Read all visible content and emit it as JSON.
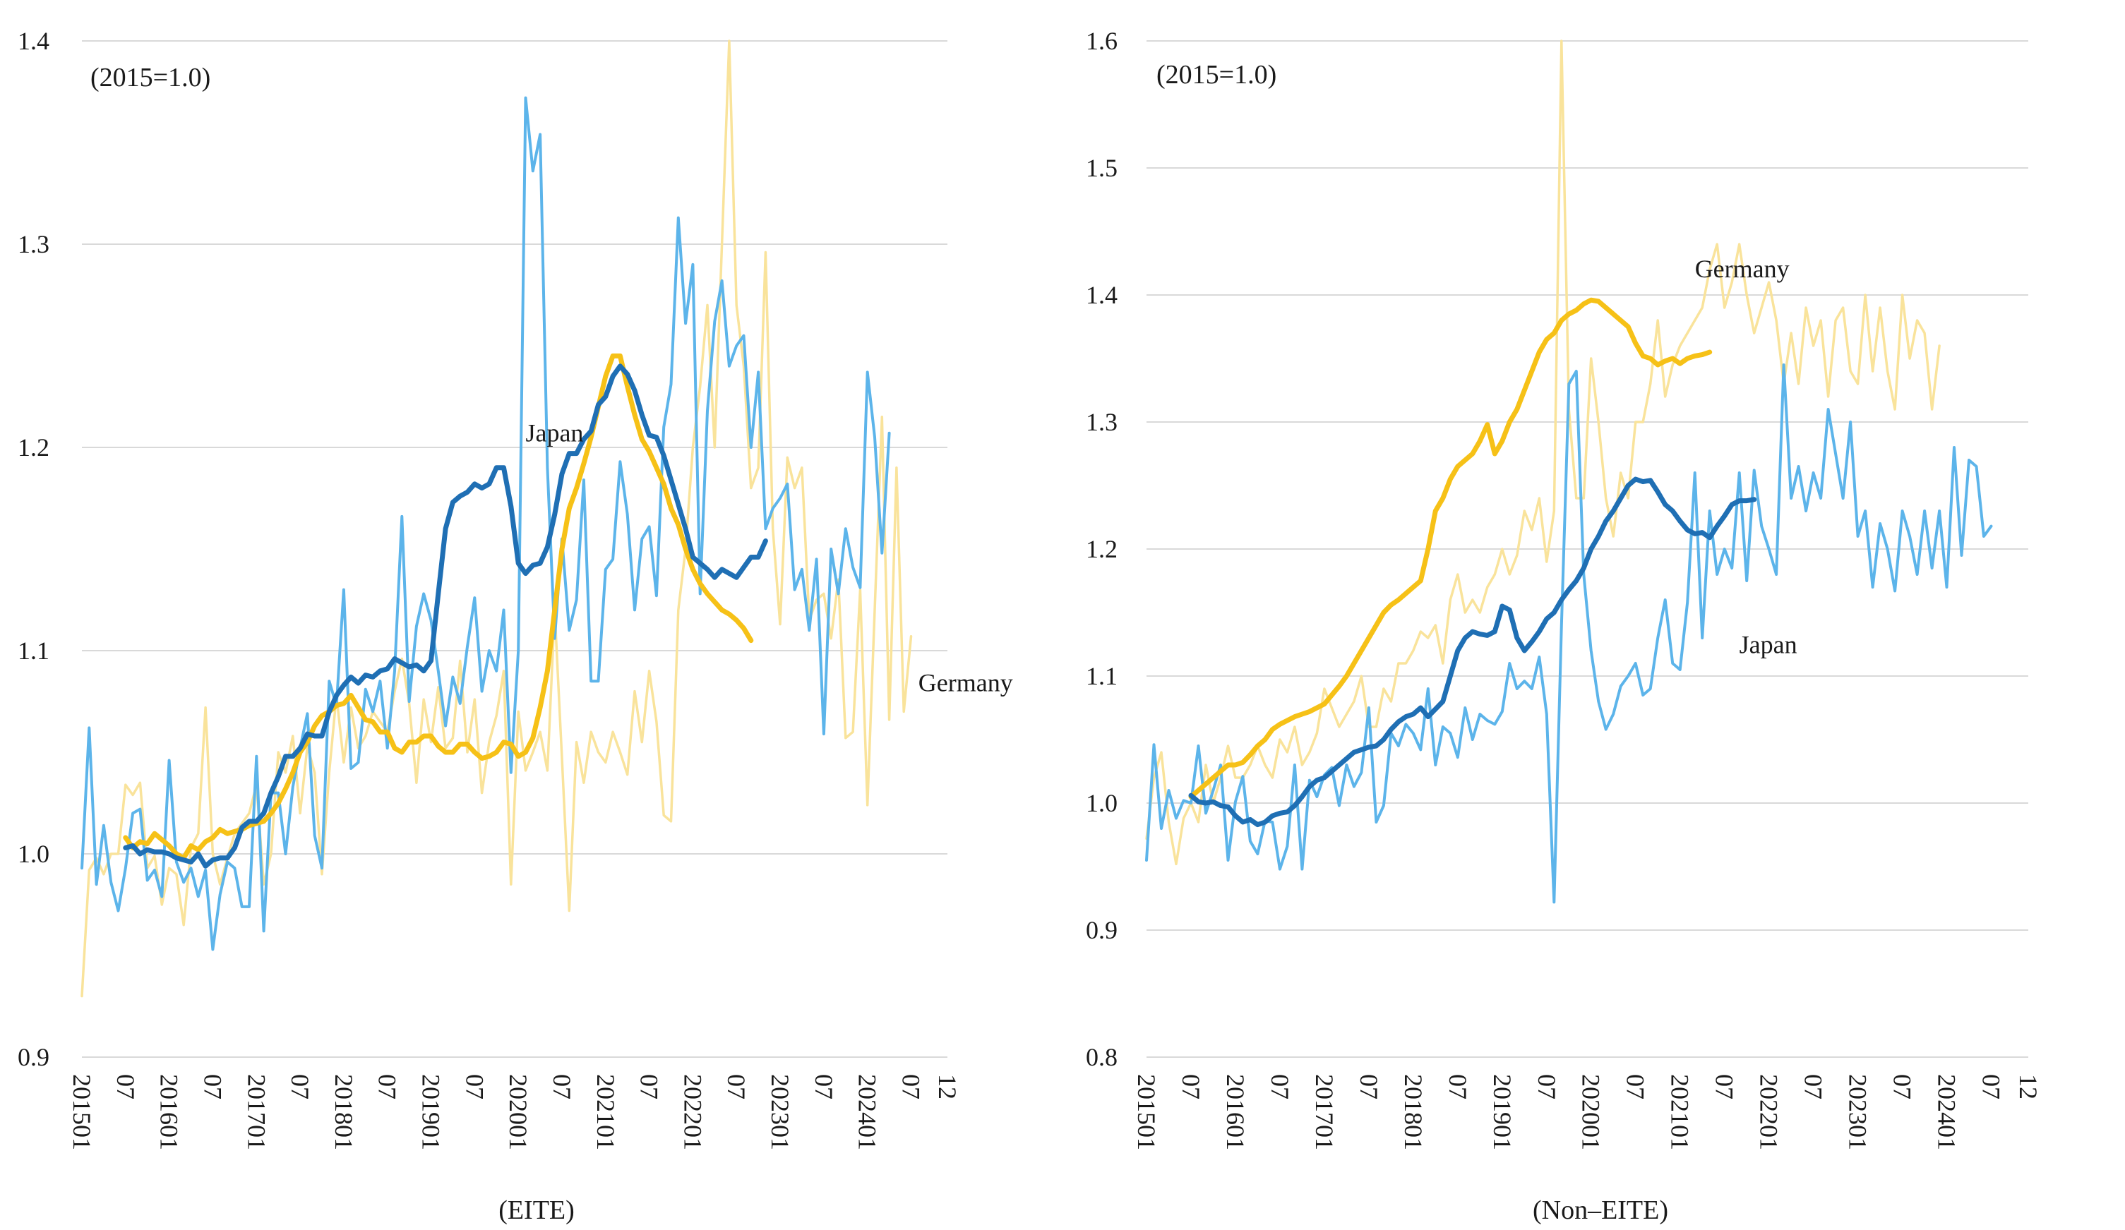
{
  "colors": {
    "japan_raw": "#5cb4ea",
    "japan_ma": "#1f6fb4",
    "germany_raw": "#f9e39b",
    "germany_ma": "#f6c117",
    "grid": "#d9d9d9"
  },
  "chart_data": [
    {
      "type": "line",
      "panel": "left",
      "annotation": "(2015=1.0)",
      "xlabel": "(EITE)",
      "ylim": [
        0.9,
        1.4
      ],
      "y_ticks": [
        "0.9",
        "1.0",
        "1.1",
        "1.2",
        "1.3",
        "1.4"
      ],
      "x_tick_labels": [
        "201501",
        "07",
        "201601",
        "07",
        "201701",
        "07",
        "201801",
        "07",
        "201901",
        "07",
        "202001",
        "07",
        "202101",
        "07",
        "202201",
        "07",
        "202301",
        "07",
        "202401",
        "07",
        "12"
      ],
      "grid": true,
      "legend": "inline labels",
      "series_labels": [
        {
          "text": "Japan",
          "month": 61,
          "value": 1.203
        },
        {
          "text": "Germany",
          "month": 115,
          "value": 1.08
        }
      ],
      "series": [
        {
          "name": "Japan",
          "style": "raw",
          "start_month": 0,
          "values": [
            0.993,
            1.062,
            0.985,
            1.014,
            0.986,
            0.972,
            0.993,
            1.02,
            1.022,
            0.987,
            0.992,
            0.979,
            1.046,
            0.996,
            0.986,
            0.993,
            0.979,
            0.992,
            0.953,
            0.98,
            0.996,
            0.993,
            0.974,
            0.974,
            1.048,
            0.962,
            1.03,
            1.03,
            1.0,
            1.033,
            1.052,
            1.069,
            1.009,
            0.993,
            1.085,
            1.073,
            1.13,
            1.042,
            1.045,
            1.081,
            1.07,
            1.085,
            1.052,
            1.09,
            1.166,
            1.075,
            1.112,
            1.128,
            1.115,
            1.09,
            1.063,
            1.087,
            1.074,
            1.102,
            1.126,
            1.08,
            1.1,
            1.09,
            1.12,
            1.04,
            1.1,
            1.372,
            1.336,
            1.354,
            1.19,
            1.106,
            1.155,
            1.11,
            1.125,
            1.184,
            1.085,
            1.085,
            1.14,
            1.145,
            1.193,
            1.167,
            1.12,
            1.155,
            1.161,
            1.127,
            1.21,
            1.231,
            1.313,
            1.261,
            1.29,
            1.128,
            1.218,
            1.262,
            1.282,
            1.24,
            1.25,
            1.255,
            1.2,
            1.237,
            1.16,
            1.17,
            1.175,
            1.182,
            1.13,
            1.14,
            1.11,
            1.145,
            1.059,
            1.15,
            1.128,
            1.16,
            1.141,
            1.131,
            1.237,
            1.205,
            1.148,
            1.207
          ]
        },
        {
          "name": "Japan",
          "style": "moving-average",
          "start_month": 6,
          "values": [
            1.003,
            1.004,
            1.0,
            1.002,
            1.001,
            1.001,
            1.0,
            0.998,
            0.997,
            0.996,
            1.0,
            0.994,
            0.997,
            0.998,
            0.998,
            1.003,
            1.013,
            1.016,
            1.016,
            1.02,
            1.03,
            1.038,
            1.048,
            1.048,
            1.052,
            1.059,
            1.058,
            1.058,
            1.07,
            1.078,
            1.083,
            1.087,
            1.084,
            1.088,
            1.087,
            1.09,
            1.091,
            1.096,
            1.094,
            1.092,
            1.093,
            1.09,
            1.095,
            1.128,
            1.16,
            1.173,
            1.176,
            1.178,
            1.182,
            1.18,
            1.182,
            1.19,
            1.19,
            1.171,
            1.143,
            1.138,
            1.142,
            1.143,
            1.151,
            1.167,
            1.187,
            1.197,
            1.197,
            1.204,
            1.208,
            1.221,
            1.225,
            1.235,
            1.24,
            1.236,
            1.228,
            1.216,
            1.206,
            1.205,
            1.196,
            1.184,
            1.172,
            1.16,
            1.146,
            1.143,
            1.14,
            1.136,
            1.14,
            1.138,
            1.136,
            1.141,
            1.146,
            1.146,
            1.154
          ]
        },
        {
          "name": "Germany",
          "style": "raw",
          "start_month": 0,
          "values": [
            0.93,
            0.992,
            0.998,
            0.99,
            1.0,
            1.0,
            1.034,
            1.029,
            1.035,
            0.993,
            0.999,
            0.975,
            0.993,
            0.99,
            0.965,
            1.003,
            1.01,
            1.072,
            1.0,
            0.985,
            0.998,
            1.01,
            1.015,
            1.02,
            1.034,
            0.985,
            1.0,
            1.05,
            1.04,
            1.058,
            1.02,
            1.053,
            1.04,
            0.99,
            1.04,
            1.078,
            1.045,
            1.072,
            1.052,
            1.058,
            1.07,
            1.065,
            1.06,
            1.08,
            1.096,
            1.074,
            1.035,
            1.076,
            1.055,
            1.082,
            1.052,
            1.057,
            1.095,
            1.05,
            1.076,
            1.03,
            1.055,
            1.068,
            1.09,
            0.985,
            1.07,
            1.041,
            1.05,
            1.06,
            1.041,
            1.12,
            1.047,
            0.972,
            1.055,
            1.035,
            1.06,
            1.05,
            1.045,
            1.06,
            1.05,
            1.039,
            1.08,
            1.055,
            1.09,
            1.065,
            1.019,
            1.016,
            1.12,
            1.15,
            1.2,
            1.23,
            1.27,
            1.2,
            1.3,
            1.42,
            1.27,
            1.24,
            1.18,
            1.19,
            1.296,
            1.16,
            1.113,
            1.195,
            1.18,
            1.19,
            1.115,
            1.125,
            1.128,
            1.106,
            1.135,
            1.057,
            1.06,
            1.13,
            1.024,
            1.12,
            1.215,
            1.066,
            1.19,
            1.07,
            1.107
          ]
        },
        {
          "name": "Germany",
          "style": "moving-average",
          "start_month": 6,
          "values": [
            1.008,
            1.003,
            1.006,
            1.005,
            1.01,
            1.007,
            1.004,
            1.0,
            0.998,
            1.004,
            1.002,
            1.006,
            1.008,
            1.012,
            1.01,
            1.011,
            1.012,
            1.014,
            1.015,
            1.016,
            1.02,
            1.025,
            1.032,
            1.04,
            1.05,
            1.055,
            1.063,
            1.068,
            1.07,
            1.073,
            1.074,
            1.078,
            1.072,
            1.066,
            1.065,
            1.06,
            1.06,
            1.052,
            1.05,
            1.055,
            1.055,
            1.058,
            1.058,
            1.053,
            1.05,
            1.05,
            1.054,
            1.054,
            1.05,
            1.047,
            1.048,
            1.05,
            1.055,
            1.054,
            1.048,
            1.05,
            1.057,
            1.072,
            1.09,
            1.12,
            1.15,
            1.17,
            1.18,
            1.192,
            1.205,
            1.22,
            1.235,
            1.245,
            1.245,
            1.23,
            1.216,
            1.204,
            1.198,
            1.19,
            1.182,
            1.17,
            1.162,
            1.15,
            1.14,
            1.133,
            1.128,
            1.124,
            1.12,
            1.118,
            1.115,
            1.111,
            1.105
          ]
        }
      ]
    },
    {
      "type": "line",
      "panel": "right",
      "annotation": "(2015=1.0)",
      "xlabel": "(Non–EITE)",
      "ylim": [
        0.8,
        1.6
      ],
      "y_ticks": [
        "0.8",
        "0.9",
        "1.0",
        "1.1",
        "1.2",
        "1.3",
        "1.4",
        "1.5",
        "1.6"
      ],
      "x_tick_labels": [
        "201501",
        "07",
        "201601",
        "07",
        "201701",
        "07",
        "201801",
        "07",
        "201901",
        "07",
        "202001",
        "07",
        "202101",
        "07",
        "202201",
        "07",
        "202301",
        "07",
        "202401",
        "07",
        "12"
      ],
      "grid": true,
      "legend": "inline labels",
      "series_labels": [
        {
          "text": "Germany",
          "month": 74,
          "value": 1.414
        },
        {
          "text": "Japan",
          "month": 80,
          "value": 1.118
        }
      ],
      "series": [
        {
          "name": "Japan",
          "style": "raw",
          "start_month": 0,
          "values": [
            0.955,
            1.046,
            0.98,
            1.01,
            0.988,
            1.002,
            1.0,
            1.045,
            0.992,
            1.01,
            1.03,
            0.955,
            1.001,
            1.021,
            0.97,
            0.96,
            0.986,
            0.985,
            0.948,
            0.966,
            1.03,
            0.948,
            1.018,
            1.005,
            1.022,
            1.028,
            0.998,
            1.03,
            1.013,
            1.024,
            1.075,
            0.985,
            0.998,
            1.055,
            1.045,
            1.062,
            1.055,
            1.042,
            1.09,
            1.03,
            1.06,
            1.055,
            1.036,
            1.075,
            1.05,
            1.07,
            1.065,
            1.062,
            1.072,
            1.11,
            1.09,
            1.096,
            1.09,
            1.115,
            1.07,
            0.922,
            1.14,
            1.33,
            1.34,
            1.18,
            1.12,
            1.08,
            1.058,
            1.07,
            1.092,
            1.1,
            1.11,
            1.085,
            1.09,
            1.13,
            1.16,
            1.11,
            1.105,
            1.158,
            1.26,
            1.13,
            1.23,
            1.18,
            1.2,
            1.185,
            1.26,
            1.175,
            1.262,
            1.218,
            1.2,
            1.18,
            1.345,
            1.24,
            1.265,
            1.23,
            1.26,
            1.24,
            1.31,
            1.275,
            1.24,
            1.3,
            1.21,
            1.23,
            1.17,
            1.22,
            1.2,
            1.167,
            1.23,
            1.21,
            1.18,
            1.23,
            1.185,
            1.23,
            1.17,
            1.28,
            1.195,
            1.27,
            1.265,
            1.21,
            1.218
          ]
        },
        {
          "name": "Japan",
          "style": "moving-average",
          "start_month": 6,
          "values": [
            1.006,
            1.001,
            1.0,
            1.001,
            0.998,
            0.997,
            0.99,
            0.985,
            0.987,
            0.983,
            0.985,
            0.99,
            0.992,
            0.993,
            0.998,
            1.005,
            1.013,
            1.018,
            1.02,
            1.025,
            1.03,
            1.035,
            1.04,
            1.042,
            1.044,
            1.045,
            1.05,
            1.058,
            1.064,
            1.068,
            1.07,
            1.075,
            1.068,
            1.074,
            1.08,
            1.1,
            1.12,
            1.13,
            1.135,
            1.133,
            1.132,
            1.135,
            1.155,
            1.152,
            1.13,
            1.12,
            1.127,
            1.135,
            1.145,
            1.15,
            1.16,
            1.168,
            1.175,
            1.185,
            1.2,
            1.21,
            1.222,
            1.23,
            1.24,
            1.25,
            1.255,
            1.253,
            1.254,
            1.245,
            1.235,
            1.23,
            1.222,
            1.215,
            1.212,
            1.213,
            1.209,
            1.218,
            1.226,
            1.235,
            1.238,
            1.238,
            1.239
          ]
        },
        {
          "name": "Germany",
          "style": "raw",
          "start_month": 0,
          "values": [
            0.972,
            1.02,
            1.04,
            0.985,
            0.952,
            0.988,
            1.0,
            0.985,
            1.03,
            1.0,
            1.02,
            1.045,
            1.02,
            1.02,
            1.03,
            1.045,
            1.03,
            1.02,
            1.05,
            1.04,
            1.06,
            1.03,
            1.04,
            1.055,
            1.09,
            1.075,
            1.06,
            1.07,
            1.08,
            1.1,
            1.06,
            1.06,
            1.09,
            1.08,
            1.11,
            1.11,
            1.12,
            1.135,
            1.13,
            1.14,
            1.11,
            1.16,
            1.18,
            1.15,
            1.16,
            1.15,
            1.17,
            1.18,
            1.2,
            1.18,
            1.195,
            1.23,
            1.215,
            1.24,
            1.19,
            1.23,
            1.65,
            1.31,
            1.24,
            1.24,
            1.35,
            1.3,
            1.24,
            1.21,
            1.26,
            1.24,
            1.3,
            1.3,
            1.33,
            1.38,
            1.32,
            1.345,
            1.36,
            1.37,
            1.38,
            1.39,
            1.42,
            1.44,
            1.39,
            1.41,
            1.44,
            1.4,
            1.37,
            1.39,
            1.41,
            1.38,
            1.33,
            1.37,
            1.33,
            1.39,
            1.36,
            1.38,
            1.32,
            1.38,
            1.39,
            1.34,
            1.33,
            1.4,
            1.34,
            1.39,
            1.34,
            1.31,
            1.4,
            1.35,
            1.38,
            1.37,
            1.31,
            1.36
          ]
        },
        {
          "name": "Germany",
          "style": "moving-average",
          "start_month": 6,
          "values": [
            1.005,
            1.01,
            1.015,
            1.02,
            1.025,
            1.03,
            1.03,
            1.032,
            1.038,
            1.045,
            1.05,
            1.058,
            1.062,
            1.065,
            1.068,
            1.07,
            1.072,
            1.075,
            1.078,
            1.085,
            1.092,
            1.1,
            1.11,
            1.12,
            1.13,
            1.14,
            1.15,
            1.156,
            1.16,
            1.165,
            1.17,
            1.175,
            1.2,
            1.23,
            1.24,
            1.255,
            1.265,
            1.27,
            1.275,
            1.285,
            1.298,
            1.275,
            1.285,
            1.3,
            1.31,
            1.325,
            1.34,
            1.355,
            1.365,
            1.37,
            1.38,
            1.385,
            1.388,
            1.393,
            1.396,
            1.395,
            1.39,
            1.385,
            1.38,
            1.375,
            1.362,
            1.352,
            1.35,
            1.345,
            1.348,
            1.35,
            1.346,
            1.35,
            1.352,
            1.353,
            1.355
          ]
        }
      ]
    }
  ]
}
